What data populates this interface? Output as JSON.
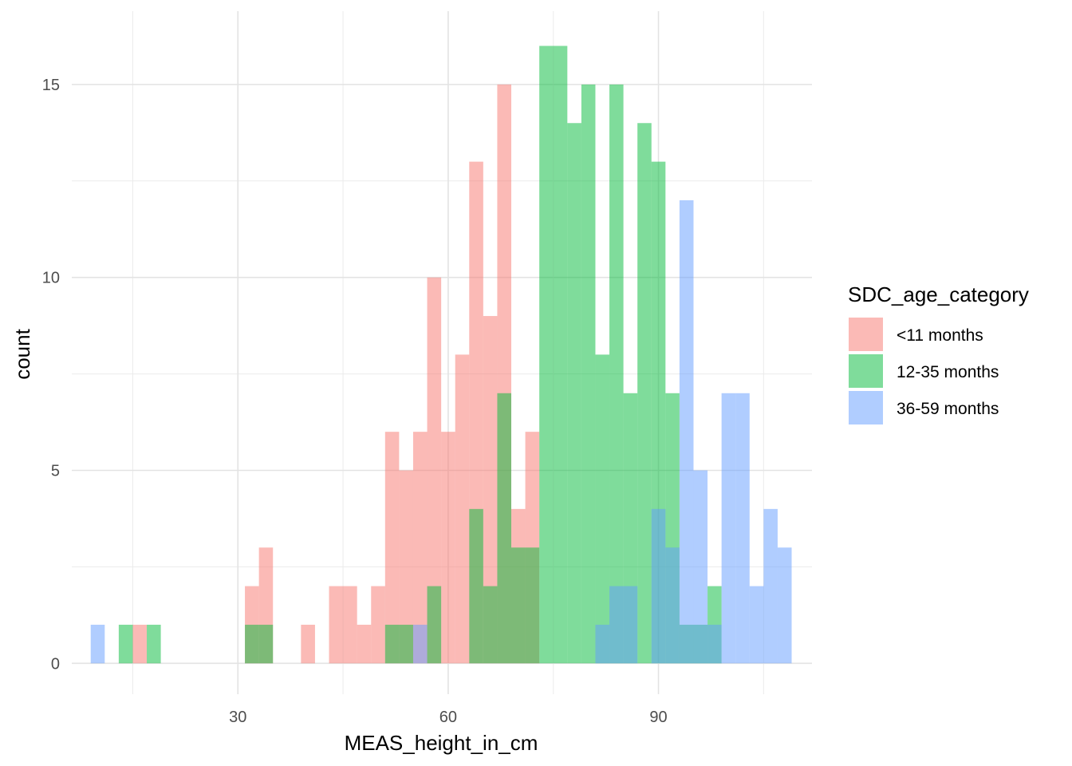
{
  "chart_data": {
    "type": "histogram",
    "xlabel": "MEAS_height_in_cm",
    "ylabel": "count",
    "x_ticks": [
      30,
      60,
      90
    ],
    "y_ticks": [
      0,
      5,
      10,
      15
    ],
    "xlim": [
      6.3,
      111.9
    ],
    "ylim": [
      -0.8,
      16.9
    ],
    "bin_width": 2,
    "bar_opacity": 0.5,
    "grid": true,
    "legend": {
      "title": "SDC_age_category",
      "position": "right"
    },
    "series": [
      {
        "name": "<11 months",
        "color": "#F8766D",
        "bins": [
          [
            16,
            1
          ],
          [
            32,
            2
          ],
          [
            34,
            3
          ],
          [
            40,
            1
          ],
          [
            44,
            2
          ],
          [
            46,
            2
          ],
          [
            48,
            1
          ],
          [
            50,
            2
          ],
          [
            52,
            6
          ],
          [
            54,
            5
          ],
          [
            56,
            6
          ],
          [
            58,
            10
          ],
          [
            60,
            6
          ],
          [
            62,
            8
          ],
          [
            64,
            13
          ],
          [
            66,
            9
          ],
          [
            68,
            15
          ],
          [
            70,
            4
          ],
          [
            72,
            6
          ]
        ]
      },
      {
        "name": "12-35 months",
        "color": "#00BA38",
        "bins": [
          [
            14,
            1
          ],
          [
            18,
            1
          ],
          [
            32,
            1
          ],
          [
            34,
            1
          ],
          [
            52,
            1
          ],
          [
            54,
            1
          ],
          [
            58,
            2
          ],
          [
            64,
            4
          ],
          [
            66,
            2
          ],
          [
            68,
            7
          ],
          [
            70,
            3
          ],
          [
            72,
            3
          ],
          [
            74,
            16
          ],
          [
            76,
            16
          ],
          [
            78,
            14
          ],
          [
            80,
            15
          ],
          [
            82,
            8
          ],
          [
            84,
            15
          ],
          [
            86,
            7
          ],
          [
            88,
            14
          ],
          [
            90,
            13
          ],
          [
            92,
            7
          ],
          [
            94,
            1
          ],
          [
            96,
            1
          ],
          [
            98,
            2
          ]
        ]
      },
      {
        "name": "36-59 months",
        "color": "#619CFF",
        "bins": [
          [
            10,
            1
          ],
          [
            56,
            1
          ],
          [
            82,
            1
          ],
          [
            84,
            2
          ],
          [
            86,
            2
          ],
          [
            90,
            4
          ],
          [
            92,
            3
          ],
          [
            94,
            12
          ],
          [
            96,
            5
          ],
          [
            98,
            1
          ],
          [
            100,
            7
          ],
          [
            102,
            7
          ],
          [
            104,
            2
          ],
          [
            106,
            4
          ],
          [
            108,
            3
          ]
        ]
      }
    ]
  }
}
